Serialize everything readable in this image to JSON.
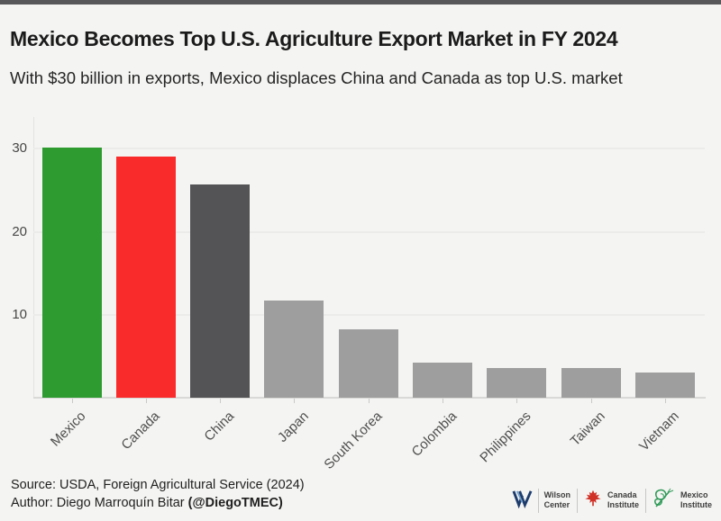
{
  "header": {
    "title": "Mexico Becomes Top U.S. Agriculture Export Market in FY 2024",
    "subtitle": "With $30 billion in exports, Mexico displaces China and Canada as top U.S. market"
  },
  "chart_data": {
    "type": "bar",
    "categories": [
      "Mexico",
      "Canada",
      "China",
      "Japan",
      "South Korea",
      "Colombia",
      "Philippines",
      "Taiwan",
      "Vietnam"
    ],
    "values": [
      30,
      28.9,
      25.6,
      11.7,
      8.2,
      4.2,
      3.6,
      3.6,
      3.0
    ],
    "bar_colors": [
      "#2e9b31",
      "#f92b2b",
      "#545456",
      "#9e9e9e",
      "#9e9e9e",
      "#9e9e9e",
      "#9e9e9e",
      "#9e9e9e",
      "#9e9e9e"
    ],
    "title": "Mexico Becomes Top U.S. Agriculture Export Market in FY 2024",
    "xlabel": "",
    "ylabel": "",
    "yticks": [
      10,
      20,
      30
    ],
    "ylim": [
      0,
      33.8
    ],
    "grid": "horizontal",
    "legend": "none",
    "x_label_rotation_deg": -45
  },
  "footer": {
    "source": "Source: USDA, Foreign Agricultural Service (2024)",
    "author_prefix": "Author: Diego Marroquín Bitar ",
    "author_handle": "(@DiegoTMEC)"
  },
  "logos": {
    "wilson": {
      "line1": "Wilson",
      "line2": "Center"
    },
    "canada": {
      "line1": "Canada",
      "line2": "Institute"
    },
    "mexico": {
      "line1": "Mexico",
      "line2": "Institute"
    }
  },
  "colors": {
    "background": "#f4f4f2",
    "top_bar": "#58585a",
    "highlight_green": "#2e9b31",
    "highlight_red": "#f92b2b",
    "highlight_dark": "#545456",
    "neutral_bar": "#9e9e9e",
    "wilson_navy": "#1d3c6e",
    "canada_red": "#d03127",
    "mexico_green": "#2f9a58"
  }
}
